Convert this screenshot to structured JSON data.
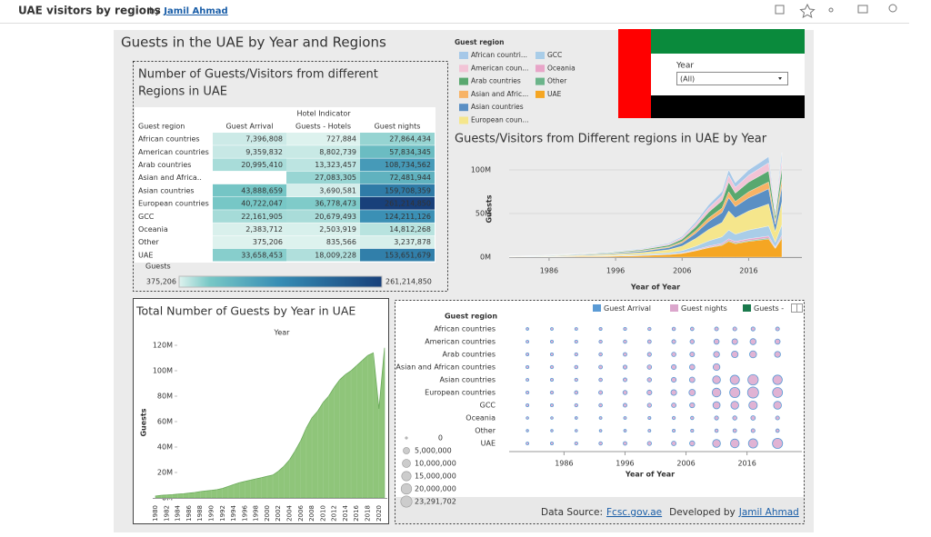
{
  "header": {
    "title": "UAE visitors by regions",
    "by": "by",
    "author": "Jamil Ahmad"
  },
  "dashboard_title": "Guests in the UAE by Year and Regions",
  "table": {
    "title_lines": [
      "Number of Guests/Visitors from different",
      "Regions in UAE"
    ],
    "group_header": "Hotel Indicator",
    "columns": [
      "Guest region",
      "Guest Arrival",
      "Guests - Hotels",
      "Guest nights"
    ],
    "rows": [
      [
        "African countries",
        "7,396,808",
        "727,884",
        "27,864,434"
      ],
      [
        "American countries",
        "9,359,832",
        "8,802,739",
        "57,834,345"
      ],
      [
        "Arab countries",
        "20,995,410",
        "13,323,457",
        "108,734,562"
      ],
      [
        "Asian and Africa..",
        null,
        "27,083,305",
        "72,481,944"
      ],
      [
        "Asian countries",
        "43,888,659",
        "3,690,581",
        "159,708,359"
      ],
      [
        "European countries",
        "40,722,047",
        "36,778,473",
        "261,214,850"
      ],
      [
        "GCC",
        "22,161,905",
        "20,679,493",
        "124,211,126"
      ],
      [
        "Oceania",
        "2,383,712",
        "2,503,919",
        "14,812,268"
      ],
      [
        "Other",
        "375,206",
        "835,566",
        "3,237,878"
      ],
      [
        "UAE",
        "33,658,453",
        "18,009,228",
        "153,651,679"
      ]
    ],
    "legend": {
      "title": "Guests",
      "min": "375,206",
      "max": "261,214,850"
    }
  },
  "filter": {
    "label": "Year",
    "value": "(All)"
  },
  "footer": {
    "source_label": "Data Source:",
    "source_link": "Fcsc.gov.ae",
    "dev_label": "Developed by",
    "dev_link": "Jamil Ahmad"
  },
  "chart_data": [
    {
      "type": "stacked_area",
      "title": "Guests/Visitors from Different regions in UAE by Year",
      "legend_title": "Guest region",
      "xlabel": "Year of Year",
      "ylabel": "Guests",
      "x": [
        1980,
        1985,
        1990,
        1995,
        2000,
        2004,
        2006,
        2008,
        2010,
        2012,
        2013,
        2014,
        2016,
        2018,
        2019,
        2020,
        2021
      ],
      "xlim": [
        1980,
        2024
      ],
      "xticks": [
        1986,
        1996,
        2006,
        2016
      ],
      "ylim": [
        0,
        125
      ],
      "yticks": [
        {
          "value": 0,
          "label": "0M"
        },
        {
          "value": 50,
          "label": "50M"
        },
        {
          "value": 100,
          "label": "100M"
        }
      ],
      "grid": true,
      "series": [
        {
          "name": "African countri...",
          "color": "#a6c8e8",
          "values": [
            0.06,
            0.12,
            0.24,
            0.36,
            0.6,
            1,
            1.4,
            2.4,
            3.6,
            4.5,
            6,
            5.1,
            6,
            6.6,
            6.9,
            3.3,
            7.2
          ]
        },
        {
          "name": "American coun...",
          "color": "#f2c4d6",
          "values": [
            0.08,
            0.16,
            0.32,
            0.48,
            0.8,
            1.3,
            1.9,
            3.2,
            4.8,
            6,
            8,
            6.8,
            8,
            8.8,
            9.2,
            4.4,
            9.6
          ]
        },
        {
          "name": "Arab countries",
          "color": "#59a86f",
          "values": [
            0.11,
            0.22,
            0.44,
            0.66,
            1.1,
            1.8,
            2.6,
            4.4,
            6.6,
            8.3,
            11,
            9.4,
            11,
            12.1,
            12.7,
            6.1,
            13.2
          ]
        },
        {
          "name": "Asian and Afric...",
          "color": "#f7b366",
          "values": [
            0.07,
            0.14,
            0.28,
            0.42,
            0.7,
            1.1,
            1.7,
            2.8,
            4.2,
            5.3,
            7,
            6,
            7,
            7.7,
            8,
            3.9,
            8.4
          ]
        },
        {
          "name": "Asian countries",
          "color": "#5a8fc4",
          "values": [
            0.15,
            0.3,
            0.6,
            0.9,
            1.5,
            2.4,
            3.6,
            6,
            9,
            11.3,
            15,
            12.8,
            15,
            16.5,
            17.3,
            8.3,
            18
          ]
        },
        {
          "name": "European coun...",
          "color": "#f5e68c",
          "values": [
            0.22,
            0.44,
            0.88,
            1.32,
            2.2,
            3.5,
            5.3,
            8.8,
            13.2,
            16.5,
            22,
            18.7,
            22,
            24.2,
            25.3,
            12.1,
            26.4
          ]
        },
        {
          "name": "GCC",
          "color": "#a9cde8",
          "values": [
            0.1,
            0.2,
            0.4,
            0.6,
            1,
            1.6,
            2.4,
            4,
            6,
            7.5,
            10,
            8.5,
            10,
            11,
            11.5,
            5.5,
            12
          ]
        },
        {
          "name": "Oceania",
          "color": "#e8a5c8",
          "values": [
            0.02,
            0.04,
            0.08,
            0.12,
            0.2,
            0.3,
            0.5,
            0.8,
            1.2,
            1.5,
            2,
            1.7,
            2,
            2.2,
            2.3,
            1.1,
            2.4
          ]
        },
        {
          "name": "Other",
          "color": "#6bb48a",
          "values": [
            0.01,
            0.02,
            0.04,
            0.06,
            0.1,
            0.2,
            0.2,
            0.4,
            0.6,
            0.8,
            1,
            0.9,
            1,
            1.1,
            1.2,
            0.6,
            1.2
          ]
        },
        {
          "name": "UAE",
          "color": "#f5a623",
          "values": [
            0.18,
            0.36,
            0.72,
            1.08,
            1.8,
            2.9,
            4.3,
            7.2,
            10.8,
            13.5,
            18,
            15.3,
            18,
            19.8,
            20.7,
            9.9,
            21.6
          ]
        }
      ]
    },
    {
      "type": "area",
      "title": "Total Number of Guests by Year in UAE",
      "column_header": "Year",
      "ylabel": "Guests",
      "color": "#8fc57a",
      "categories": [
        "1980",
        null,
        "1982",
        null,
        "1984",
        null,
        "1986",
        null,
        "1988",
        null,
        "1990",
        null,
        "1992",
        null,
        "1994",
        null,
        "1996",
        null,
        "1998",
        null,
        "2000",
        null,
        "2002",
        null,
        "2004",
        null,
        "2006",
        null,
        "2008",
        null,
        "2010",
        null,
        "2012",
        null,
        "2014",
        null,
        "2016",
        null,
        "2018",
        null,
        "2020",
        null
      ],
      "values": [
        1.5,
        2,
        2.3,
        2.6,
        3,
        3.3,
        3.8,
        4.3,
        5,
        5.5,
        6,
        6.5,
        7.5,
        9,
        10.5,
        12,
        13,
        14,
        15,
        16,
        17,
        18,
        21,
        25,
        30,
        37,
        45,
        55,
        63,
        68,
        75,
        80,
        87,
        93,
        97,
        100,
        104,
        108,
        112,
        114,
        70,
        118
      ],
      "ylim": [
        0,
        130
      ],
      "yticks": [
        {
          "value": 0,
          "label": "0M"
        },
        {
          "value": 20,
          "label": "20M"
        },
        {
          "value": 40,
          "label": "40M"
        },
        {
          "value": 60,
          "label": "60M"
        },
        {
          "value": 80,
          "label": "80M"
        },
        {
          "value": 100,
          "label": "100M"
        },
        {
          "value": 120,
          "label": "120M"
        }
      ]
    },
    {
      "type": "bubble",
      "row_header": "Guest region",
      "xlabel": "Year of Year",
      "legend": [
        {
          "name": "Guest Arrival",
          "color": "#5b9bd5"
        },
        {
          "name": "Guest nights",
          "color": "#dba6cc"
        },
        {
          "name": "Guests -",
          "color": "#1b7a4d"
        }
      ],
      "size_legend": [
        0,
        {
          "value": 5000000,
          "label": "5,000,000"
        },
        {
          "value": 10000000,
          "label": "10,000,000"
        },
        {
          "value": 15000000,
          "label": "15,000,000"
        },
        {
          "value": 20000000,
          "label": "20,000,000"
        },
        {
          "value": 23291702,
          "label": "23,291,702"
        }
      ],
      "categories": [
        "African countries",
        "American countries",
        "Arab countries",
        "Asian and African countries",
        "Asian countries",
        "European countries",
        "GCC",
        "Oceania",
        "Other",
        "UAE"
      ],
      "x": [
        1980,
        1984,
        1988,
        1992,
        1996,
        2000,
        2004,
        2007,
        2011,
        2014,
        2017,
        2021
      ],
      "xlim": [
        1977,
        2025
      ],
      "xticks": [
        1986,
        1996,
        2006,
        2016
      ],
      "values": [
        [
          50000,
          80000,
          100000,
          150000,
          200000,
          300000,
          400000,
          500000,
          700000,
          800000,
          900000,
          700000
        ],
        [
          100000,
          150000,
          200000,
          300000,
          400000,
          600000,
          900000,
          1200000,
          2500000,
          3500000,
          4200000,
          2500000
        ],
        [
          150000,
          200000,
          300000,
          400000,
          600000,
          900000,
          1300000,
          1800000,
          4000000,
          5500000,
          6500000,
          4000000
        ],
        [
          200000,
          300000,
          400000,
          600000,
          900000,
          1300000,
          2000000,
          2800000,
          6000000,
          null,
          null,
          null
        ],
        [
          100000,
          150000,
          250000,
          400000,
          700000,
          1200000,
          2000000,
          3000000,
          9000000,
          14000000,
          19000000,
          15000000
        ],
        [
          200000,
          300000,
          500000,
          800000,
          1200000,
          2000000,
          3500000,
          5000000,
          12000000,
          18000000,
          22000000,
          17000000
        ],
        [
          150000,
          200000,
          300000,
          450000,
          700000,
          1000000,
          1600000,
          2200000,
          7000000,
          9000000,
          11000000,
          9000000
        ],
        [
          20000,
          30000,
          50000,
          80000,
          100000,
          150000,
          250000,
          350000,
          900000,
          1200000,
          1500000,
          800000
        ],
        [
          10000,
          15000,
          25000,
          40000,
          60000,
          100000,
          150000,
          200000,
          400000,
          600000,
          800000,
          500000
        ],
        [
          100000,
          150000,
          250000,
          400000,
          600000,
          1000000,
          1600000,
          2400000,
          9000000,
          12000000,
          14000000,
          18000000
        ]
      ]
    }
  ]
}
